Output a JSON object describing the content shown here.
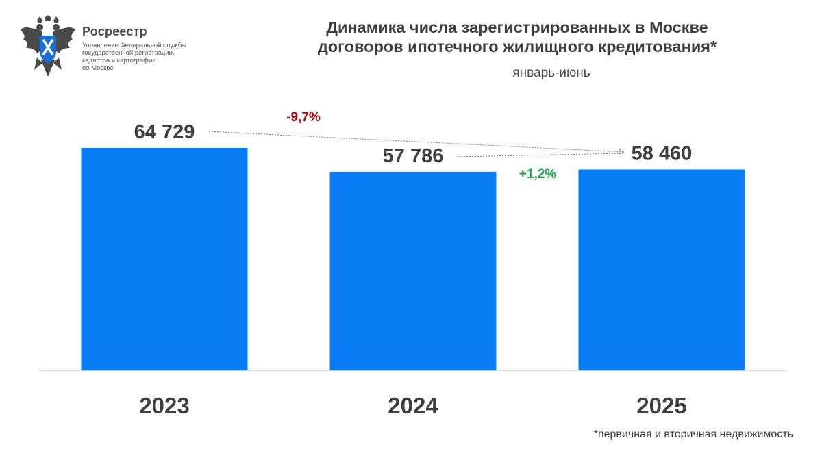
{
  "logo": {
    "name": "Росреестр",
    "subtitle_lines": [
      "Управление Федеральной службы",
      "государственной регистрации,",
      "кадастра и картографии",
      "по Москве"
    ]
  },
  "chart_data": {
    "type": "bar",
    "title": "Динамика числа зарегистрированных в Москве договоров ипотечного жилищного кредитования*",
    "title_lines": [
      "Динамика числа зарегистрированных в Москве",
      "договоров ипотечного жилищного кредитования*"
    ],
    "subtitle": "январь-июнь",
    "categories": [
      "2023",
      "2024",
      "2025"
    ],
    "values": [
      64729,
      57786,
      58460
    ],
    "value_labels": [
      "64 729",
      "57 786",
      "58 460"
    ],
    "bar_color": "#0a7cf5",
    "grid": false,
    "ylim": [
      0,
      70000
    ],
    "annotations": [
      {
        "text": "-9,7%",
        "from": "2023",
        "to": "2025",
        "color": "#c00000"
      },
      {
        "text": "+1,2%",
        "from": "2024",
        "to": "2025",
        "color": "#1aa64b"
      }
    ],
    "footnote": "*первичная и вторичная недвижимость"
  }
}
